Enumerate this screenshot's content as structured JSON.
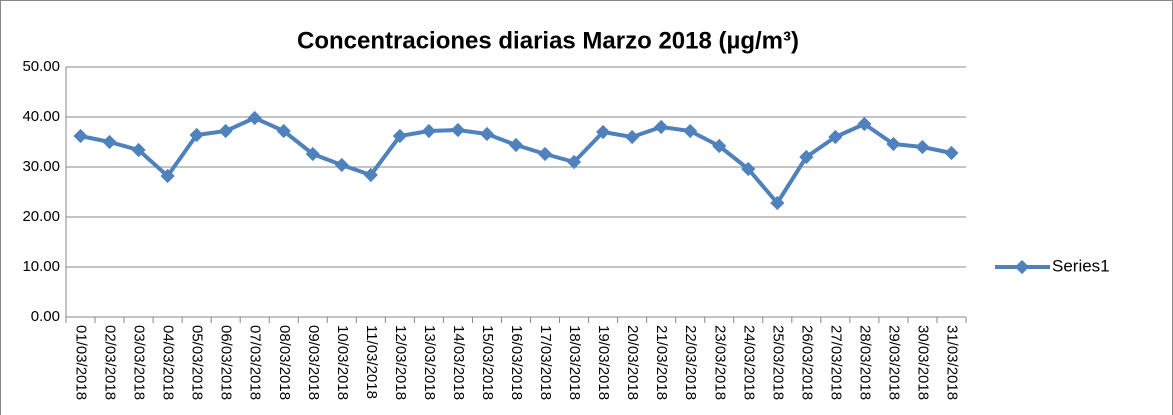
{
  "chart_data": {
    "type": "line",
    "title": "Concentraciones diarias Marzo 2018 (µg/m³)",
    "categories": [
      "01/03/2018",
      "02/03/2018",
      "03/03/2018",
      "04/03/2018",
      "05/03/2018",
      "06/03/2018",
      "07/03/2018",
      "08/03/2018",
      "09/03/2018",
      "10/03/2018",
      "11/03/2018",
      "12/03/2018",
      "13/03/2018",
      "14/03/2018",
      "15/03/2018",
      "16/03/2018",
      "17/03/2018",
      "18/03/2018",
      "19/03/2018",
      "20/03/2018",
      "21/03/2018",
      "22/03/2018",
      "23/03/2018",
      "24/03/2018",
      "25/03/2018",
      "26/03/2018",
      "27/03/2018",
      "28/03/2018",
      "29/03/2018",
      "30/03/2018",
      "31/03/2018"
    ],
    "series": [
      {
        "name": "Series1",
        "color": "#4f81bd",
        "values": [
          36.2,
          35.0,
          33.4,
          28.2,
          36.4,
          37.2,
          39.8,
          37.2,
          32.6,
          30.4,
          28.4,
          36.2,
          37.2,
          37.4,
          36.6,
          34.4,
          32.6,
          31.0,
          37.0,
          36.0,
          38.0,
          37.2,
          34.2,
          29.6,
          22.8,
          32.0,
          36.0,
          38.6,
          34.6,
          34.0,
          32.8
        ]
      }
    ],
    "ylim": [
      0,
      50
    ],
    "yticks": [
      {
        "value": 0,
        "label": "0.00"
      },
      {
        "value": 10,
        "label": "10.00"
      },
      {
        "value": 20,
        "label": "20.00"
      },
      {
        "value": 30,
        "label": "30.00"
      },
      {
        "value": 40,
        "label": "40.00"
      },
      {
        "value": 50,
        "label": "50.00"
      }
    ],
    "grid": true,
    "legend": "right"
  }
}
